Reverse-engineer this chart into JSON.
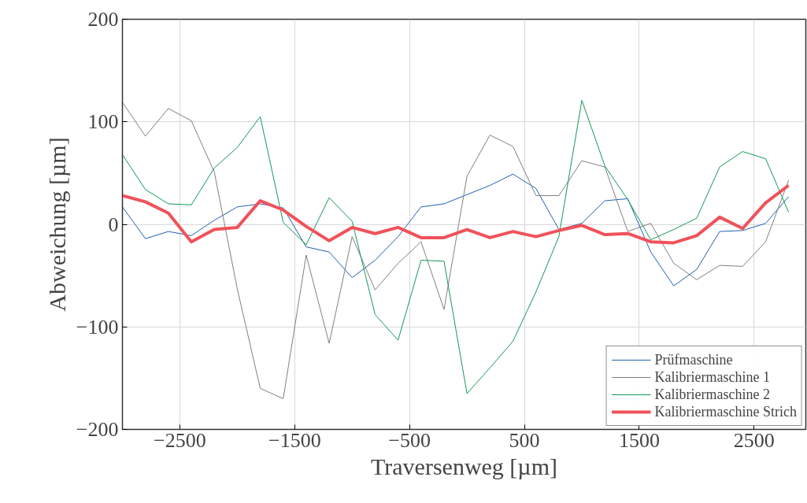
{
  "chart_data": {
    "type": "line",
    "xlabel": "Traversenweg [µm]",
    "ylabel": "Abweichung [µm]",
    "x": [
      -3000,
      -2800,
      -2600,
      -2400,
      -2200,
      -2000,
      -1800,
      -1600,
      -1400,
      -1200,
      -1000,
      -800,
      -600,
      -400,
      -200,
      0,
      200,
      400,
      600,
      800,
      1000,
      1200,
      1400,
      1600,
      1800,
      2000,
      2200,
      2400,
      2600,
      2800
    ],
    "series": [
      {
        "name": "Prüfmaschine",
        "color": "#2060b0",
        "values": [
          17,
          -14,
          -7,
          -11,
          4,
          17,
          20,
          16,
          -22,
          -27,
          -52,
          -35,
          -12,
          17,
          20,
          29,
          38,
          49,
          35,
          -5,
          1,
          23,
          25,
          -27,
          -60,
          -44,
          -7,
          -6,
          1,
          27
        ]
      },
      {
        "name": "Kalibriermaschine 1",
        "color": "#7f7f7f",
        "values": [
          119,
          86,
          113,
          101,
          51,
          -63,
          -160,
          -170,
          -30,
          -116,
          -12,
          -64,
          -38,
          -17,
          -83,
          47,
          87,
          76,
          28,
          28,
          62,
          56,
          -7,
          1,
          -38,
          -54,
          -40,
          -41,
          -17,
          43
        ]
      },
      {
        "name": "Kalibriermaschine 2",
        "color": "#119955",
        "values": [
          68,
          34,
          20,
          19,
          55,
          75,
          105,
          2,
          -20,
          26,
          3,
          -88,
          -113,
          -35,
          -36,
          -165,
          -140,
          -114,
          -66,
          -12,
          121,
          57,
          24,
          -15,
          -5,
          6,
          56,
          71,
          64,
          12
        ]
      },
      {
        "name": "Kalibriermaschine Strich",
        "color": "#f0525a",
        "values": [
          28,
          22,
          11,
          -17,
          -5,
          -3,
          23,
          14,
          -2,
          -16,
          -3,
          -9,
          -3,
          -13,
          -13,
          -5,
          -13,
          -7,
          -12,
          -6,
          -1,
          -10,
          -9,
          -17,
          -18,
          -11,
          7,
          -4,
          21,
          38
        ]
      }
    ],
    "xlim": [
      -3000,
      2950
    ],
    "ylim": [
      -200,
      200
    ],
    "xticks": [
      {
        "value": -2500,
        "label": "−2500"
      },
      {
        "value": -1500,
        "label": "−1500"
      },
      {
        "value": -500,
        "label": "−500"
      },
      500,
      1500,
      2500
    ],
    "yticks": [
      {
        "value": -200,
        "label": "−200"
      },
      {
        "value": -100,
        "label": "−100"
      },
      0,
      100,
      200
    ],
    "grid": true,
    "legend": "bottom right",
    "marker": "none",
    "line_style": "solid"
  }
}
